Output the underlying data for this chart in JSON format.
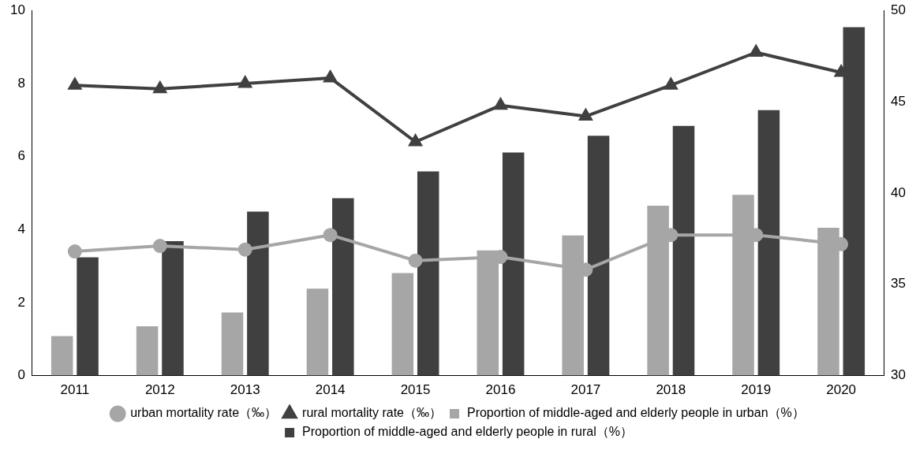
{
  "chart_data": {
    "type": "bar",
    "categories": [
      "2011",
      "2012",
      "2013",
      "2014",
      "2015",
      "2016",
      "2017",
      "2018",
      "2019",
      "2020"
    ],
    "series": [
      {
        "name": "Proportion of middle-aged and elderly people in urban（%）",
        "color": "#a6a6a6",
        "values": [
          1.08,
          1.35,
          1.73,
          2.38,
          2.81,
          3.43,
          3.84,
          4.65,
          4.95,
          4.05
        ]
      },
      {
        "name": "Proportion of middle-aged and elderly people in rural（%）",
        "color": "#404040",
        "values": [
          3.24,
          3.68,
          4.49,
          4.86,
          5.59,
          6.11,
          6.57,
          6.84,
          7.27,
          9.54
        ]
      },
      {
        "name": "urban mortality rate（‰）",
        "type": "line",
        "axis": "y2",
        "marker": "circle",
        "color": "#a6a6a6",
        "values": [
          36.8,
          37.1,
          36.9,
          37.7,
          36.3,
          36.5,
          35.8,
          37.7,
          37.7,
          37.2
        ]
      },
      {
        "name": "rural mortality rate（‰）",
        "type": "line",
        "axis": "y2",
        "marker": "triangle",
        "color": "#404040",
        "values": [
          45.9,
          45.7,
          46.0,
          46.3,
          42.8,
          44.8,
          44.2,
          45.9,
          47.7,
          46.6
        ]
      }
    ],
    "ylim": [
      0,
      10
    ],
    "yticks": [
      0,
      2,
      4,
      6,
      8,
      10
    ],
    "y2lim": [
      30,
      50
    ],
    "y2ticks": [
      30,
      35,
      40,
      45,
      50
    ],
    "grid": false,
    "legend": "bottom"
  }
}
